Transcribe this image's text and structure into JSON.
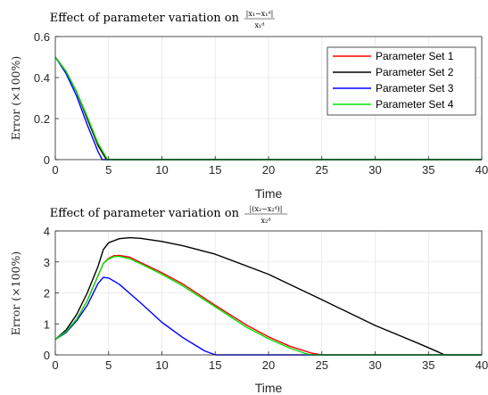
{
  "chart_data": [
    {
      "type": "line",
      "title": "Effect of parameter variation on",
      "title_expr": {
        "numerator": "|x₁−x₁ᵈ|",
        "denominator": "x₁ᵈ"
      },
      "xlabel": "Time",
      "ylabel": "Error (×100%)",
      "xlim": [
        0,
        40
      ],
      "ylim": [
        0,
        0.6
      ],
      "xticks": [
        "0",
        "5",
        "10",
        "15",
        "20",
        "25",
        "30",
        "35",
        "40"
      ],
      "yticks": [
        "0",
        "0.2",
        "0.4",
        "0.6"
      ],
      "grid": true,
      "legend": "top-right",
      "series": [
        {
          "name": "Parameter Set 1",
          "color": "#ff0000",
          "x": [
            0,
            1,
            2,
            3,
            4,
            4.8,
            5,
            40
          ],
          "y": [
            0.5,
            0.43,
            0.33,
            0.2,
            0.07,
            0,
            0,
            0
          ]
        },
        {
          "name": "Parameter Set 2",
          "color": "#000000",
          "x": [
            0,
            1,
            2,
            3,
            4,
            4.8,
            5,
            40
          ],
          "y": [
            0.5,
            0.43,
            0.33,
            0.2,
            0.07,
            0,
            0,
            0
          ]
        },
        {
          "name": "Parameter Set 3",
          "color": "#0000ff",
          "x": [
            0,
            1,
            2,
            3,
            4,
            4.4,
            5,
            40
          ],
          "y": [
            0.5,
            0.42,
            0.31,
            0.17,
            0.04,
            0,
            0,
            0
          ]
        },
        {
          "name": "Parameter Set 4",
          "color": "#00e000",
          "x": [
            0,
            1,
            2,
            3,
            4,
            4.9,
            5,
            40
          ],
          "y": [
            0.5,
            0.43,
            0.33,
            0.21,
            0.08,
            0,
            0,
            0
          ]
        }
      ]
    },
    {
      "type": "line",
      "title": "Effect of parameter variation on",
      "title_expr": {
        "numerator": "|(x₂−x₂ᵈ)|",
        "denominator": "x₂ᵈ"
      },
      "xlabel": "Time",
      "ylabel": "Error (×100%)",
      "xlim": [
        0,
        40
      ],
      "ylim": [
        0,
        4
      ],
      "xticks": [
        "0",
        "5",
        "10",
        "15",
        "20",
        "25",
        "30",
        "35",
        "40"
      ],
      "yticks": [
        "0",
        "1",
        "2",
        "3",
        "4"
      ],
      "grid": true,
      "series": [
        {
          "name": "Parameter Set 1",
          "color": "#ff0000",
          "x": [
            0,
            1,
            2,
            3,
            4,
            4.5,
            5,
            5.5,
            6,
            7,
            8,
            10,
            12,
            15,
            18,
            20,
            22,
            24,
            25,
            40
          ],
          "y": [
            0.5,
            0.75,
            1.15,
            1.75,
            2.55,
            2.95,
            3.12,
            3.2,
            3.21,
            3.15,
            2.98,
            2.65,
            2.28,
            1.6,
            0.95,
            0.58,
            0.28,
            0.06,
            0,
            0
          ]
        },
        {
          "name": "Parameter Set 2",
          "color": "#000000",
          "x": [
            0,
            1,
            2,
            3,
            4,
            4.5,
            5,
            6,
            7,
            8,
            10,
            12,
            15,
            20,
            25,
            30,
            34,
            36,
            36.5,
            40
          ],
          "y": [
            0.5,
            0.8,
            1.3,
            2.0,
            2.85,
            3.4,
            3.62,
            3.75,
            3.78,
            3.76,
            3.66,
            3.52,
            3.25,
            2.6,
            1.78,
            0.95,
            0.38,
            0.08,
            0,
            0
          ]
        },
        {
          "name": "Parameter Set 3",
          "color": "#0000ff",
          "x": [
            0,
            1,
            2,
            3,
            4,
            4.5,
            5,
            6,
            8,
            10,
            12,
            14,
            15,
            40
          ],
          "y": [
            0.5,
            0.72,
            1.1,
            1.6,
            2.3,
            2.5,
            2.48,
            2.28,
            1.68,
            1.05,
            0.55,
            0.13,
            0,
            0
          ]
        },
        {
          "name": "Parameter Set 4",
          "color": "#00e000",
          "x": [
            0,
            1,
            2,
            3,
            4,
            4.5,
            5,
            5.5,
            6,
            7,
            8,
            10,
            12,
            15,
            18,
            20,
            22,
            23.5,
            24,
            40
          ],
          "y": [
            0.5,
            0.75,
            1.15,
            1.75,
            2.55,
            2.95,
            3.1,
            3.17,
            3.18,
            3.1,
            2.94,
            2.6,
            2.22,
            1.55,
            0.88,
            0.52,
            0.22,
            0.04,
            0,
            0
          ]
        }
      ]
    }
  ]
}
